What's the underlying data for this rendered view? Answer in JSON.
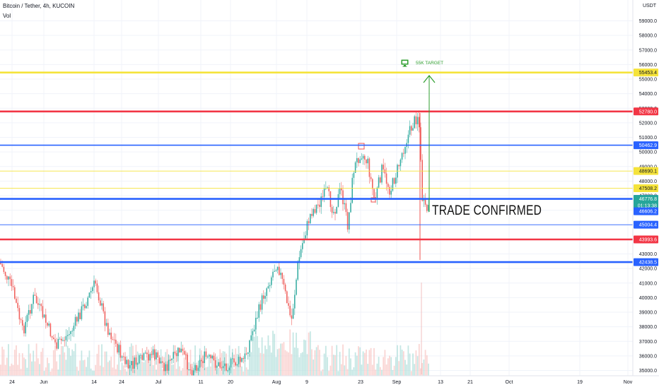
{
  "header": {
    "title": "Bitcoin / Tether, 4h, KUCOIN",
    "indicator": "Vol",
    "unit": "USDT"
  },
  "annotations": {
    "trade_text": "TRADE CONFIRMED",
    "target_text": "55K TARGET"
  },
  "chart_data": {
    "type": "line",
    "title": "Bitcoin / Tether, 4h, KUCOIN",
    "xlabel": "",
    "ylabel": "",
    "ylim": [
      34600,
      60000
    ],
    "y_ticks": [
      35000,
      36000,
      37000,
      38000,
      39000,
      40000,
      41000,
      42000,
      43000,
      44000,
      45000,
      46000,
      47000,
      48000,
      49000,
      50000,
      51000,
      52000,
      53000,
      54000,
      55000,
      56000,
      57000,
      58000,
      59000
    ],
    "x_ticks": [
      "24",
      "Jun",
      "14",
      "24",
      "Jul",
      "11",
      "20",
      "Aug",
      "9",
      "23",
      "Sep",
      "13",
      "21",
      "Oct",
      "19",
      "Nov"
    ],
    "grid": true,
    "colors": {
      "up": "#26a69a",
      "down": "#ef5350",
      "red_level": "#f23645",
      "blue_level": "#2962ff",
      "yellow_level": "#f5e33b",
      "arrow": "#2e9e2e"
    },
    "price_levels": [
      {
        "label": "55453.4",
        "value": 55453.4,
        "color": "yellow",
        "weight": "thick"
      },
      {
        "label": "52780.0",
        "value": 52780.0,
        "color": "red",
        "weight": "thick"
      },
      {
        "label": "50462.9",
        "value": 50462.9,
        "color": "blue",
        "weight": "medium"
      },
      {
        "label": "48690.1",
        "value": 48690.1,
        "color": "yellow",
        "weight": "thin"
      },
      {
        "label": "47508.2",
        "value": 47508.2,
        "color": "yellow",
        "weight": "thin"
      },
      {
        "label": "46776.8",
        "value": 46776.8,
        "color": "blue",
        "weight": "thick"
      },
      {
        "label": "45004.4",
        "value": 45004.4,
        "color": "blue",
        "weight": "thin"
      },
      {
        "label": "43993.6",
        "value": 43993.6,
        "color": "red",
        "weight": "thick"
      },
      {
        "label": "42438.5",
        "value": 42438.5,
        "color": "blue",
        "weight": "thick"
      }
    ],
    "current_price": {
      "label": "46776.8",
      "countdown": "01:13:38",
      "value": 46776.8
    },
    "previous_close": {
      "label": "46606.2",
      "value": 46606.2
    },
    "price_path": [
      {
        "x": "24",
        "y": 41800
      },
      {
        "x": "Jun",
        "y": 38200
      },
      {
        "x": "14",
        "y": 40600
      },
      {
        "x": "24",
        "y": 35300
      },
      {
        "x": "Jul",
        "y": 35700
      },
      {
        "x": "11",
        "y": 34900
      },
      {
        "x": "20",
        "y": 35300
      },
      {
        "x": "Aug",
        "y": 42300
      },
      {
        "x": "9",
        "y": 46400
      },
      {
        "x": "23",
        "y": 49200
      },
      {
        "x": "Sep",
        "y": 52900
      },
      {
        "x": "13",
        "y": 46600
      }
    ]
  }
}
